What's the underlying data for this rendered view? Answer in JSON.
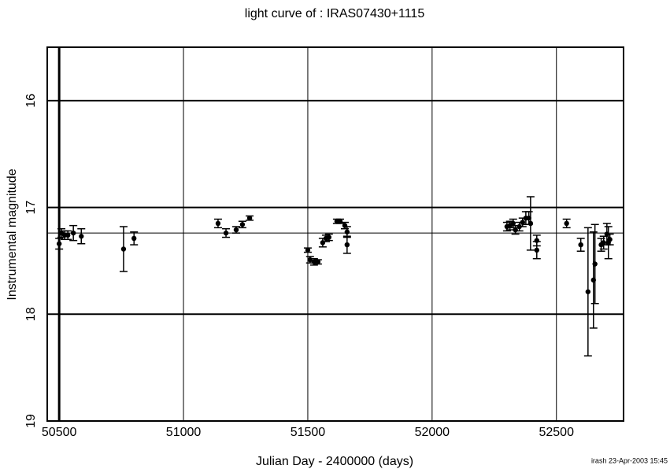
{
  "chart_data": {
    "type": "scatter",
    "title": "light curve of : IRAS07430+1115",
    "x_label": "Julian Day - 2400000 (days)",
    "y_label": "Instrumental magnitude",
    "footnote": "irash 23-Apr-2003 15:45",
    "color": "#000000",
    "y_inverted": true,
    "grid": true,
    "reference_line": 17.24,
    "xlim": [
      50452,
      52770
    ],
    "ylim": [
      15.5,
      19
    ],
    "xticks": [
      50500,
      51000,
      51500,
      52000,
      52500
    ],
    "yticks": [
      16,
      17,
      18,
      19
    ],
    "x": [
      50500,
      50509,
      50522,
      50535,
      50557,
      50589,
      50759,
      50801,
      51139,
      51171,
      51212,
      51237,
      51266,
      51500,
      51509,
      51525,
      51541,
      51560,
      51573,
      51585,
      51617,
      51630,
      51649,
      51658,
      51658,
      52301,
      52313,
      52326,
      52335,
      52351,
      52364,
      52377,
      52389,
      52396,
      52421,
      52421,
      52541,
      52598,
      52627,
      52649,
      52655,
      52680,
      52690,
      52703,
      52709,
      52715
    ],
    "values": [
      17.34,
      17.24,
      17.26,
      17.26,
      17.24,
      17.27,
      17.39,
      17.29,
      17.15,
      17.24,
      17.21,
      17.16,
      17.1,
      17.4,
      17.49,
      17.51,
      17.51,
      17.33,
      17.29,
      17.28,
      17.13,
      17.13,
      17.17,
      17.35,
      17.23,
      17.18,
      17.17,
      17.15,
      17.21,
      17.18,
      17.14,
      17.1,
      17.1,
      17.15,
      17.31,
      17.4,
      17.15,
      17.35,
      17.79,
      17.68,
      17.53,
      17.35,
      17.33,
      17.25,
      17.33,
      17.3
    ],
    "errors": [
      0.05,
      0.04,
      0.04,
      0.04,
      0.07,
      0.07,
      0.21,
      0.06,
      0.04,
      0.04,
      0.03,
      0.03,
      0.02,
      0.02,
      0.03,
      0.03,
      0.02,
      0.04,
      0.03,
      0.03,
      0.02,
      0.02,
      0.03,
      0.08,
      0.05,
      0.04,
      0.04,
      0.04,
      0.04,
      0.04,
      0.04,
      0.06,
      0.06,
      0.25,
      0.05,
      0.08,
      0.04,
      0.06,
      0.6,
      0.45,
      0.37,
      0.06,
      0.06,
      0.1,
      0.15,
      0.05
    ]
  }
}
